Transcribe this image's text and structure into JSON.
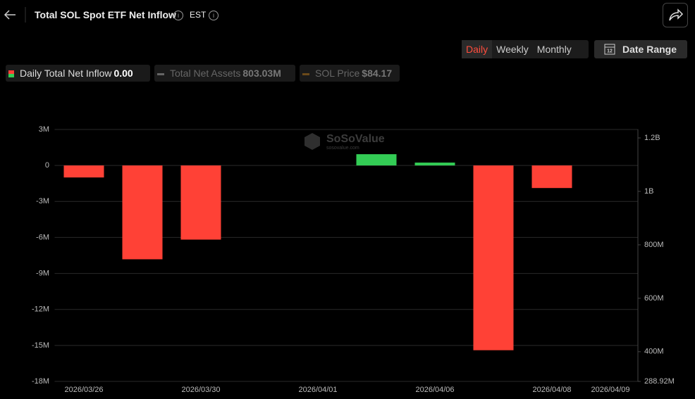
{
  "header": {
    "title": "Total SOL Spot ETF Net Inflow",
    "timezone": "EST"
  },
  "controls": {
    "periods": [
      "Daily",
      "Weekly",
      "Monthly"
    ],
    "active_period": 0,
    "date_range": "Date Range"
  },
  "legend": [
    {
      "name": "Daily Total Net Inflow",
      "value": "0.00",
      "active": true
    },
    {
      "name": "Total Net Assets",
      "value": "803.03M",
      "active": false
    },
    {
      "name": "SOL Price",
      "value": "$84.17",
      "active": false
    }
  ],
  "watermark": {
    "name": "SoSoValue",
    "site": "sosovalue.com"
  },
  "chart_data": {
    "type": "bar",
    "categories": [
      "2026/03/26",
      null,
      "2026/03/30",
      null,
      "2026/04/01",
      null,
      "2026/04/06",
      null,
      "2026/04/08",
      "2026/04/09"
    ],
    "values": [
      -1000000,
      -7820000,
      -6180000,
      0,
      0,
      940000,
      240000,
      -15400000,
      -1880000,
      0
    ],
    "color_up": "#33cc55",
    "color_down": "#ff4136",
    "ylim": [
      -18000000,
      3000000
    ],
    "yticks": [
      {
        "value": -18000000,
        "label": "-18M"
      },
      {
        "value": -15000000,
        "label": "-15M"
      },
      {
        "value": -12000000,
        "label": "-12M"
      },
      {
        "value": -9000000,
        "label": "-9M"
      },
      {
        "value": -6000000,
        "label": "-6M"
      },
      {
        "value": -3000000,
        "label": "-3M"
      },
      0,
      {
        "value": 3000000,
        "label": "3M"
      }
    ],
    "y2lim": [
      288920000,
      1231600000
    ],
    "y2ticks": [
      {
        "value": 288920000,
        "label": "288.92M"
      },
      {
        "value": 400000000,
        "label": "400M"
      },
      {
        "value": 600000000,
        "label": "600M"
      },
      {
        "value": 800000000,
        "label": "800M"
      },
      {
        "value": 1000000000,
        "label": "1B"
      },
      {
        "value": 1200000000,
        "label": "1.2B"
      }
    ],
    "grid": true
  }
}
